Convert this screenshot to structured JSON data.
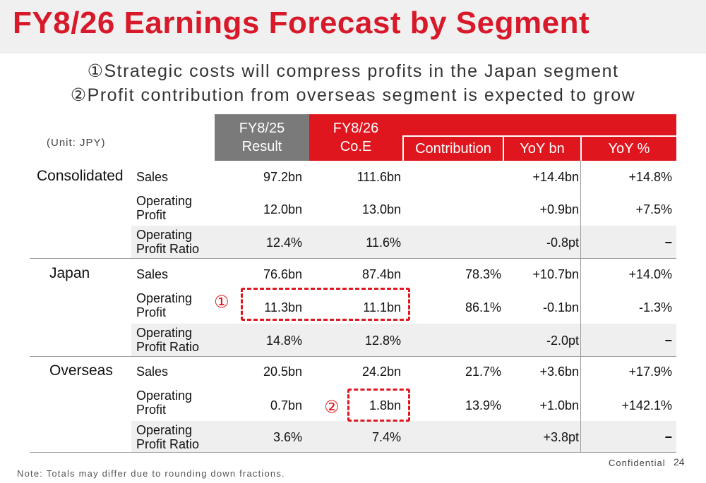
{
  "title": "FY8/26 Earnings Forecast by Segment",
  "subtitle_lines": [
    "①Strategic costs will compress profits in the Japan segment",
    "②Profit contribution from overseas segment is expected to grow"
  ],
  "unit": "(Unit: JPY)",
  "headers": {
    "fy25_line1": "FY8/25",
    "fy25_line2": "Result",
    "fy26_line1": "FY8/26",
    "fy26_line2": "Co.E",
    "contribution": "Contribution",
    "yoy_bn": "YoY bn",
    "yoy_pct": "YoY %"
  },
  "metric_labels": {
    "sales": "Sales",
    "op_line1": "Operating",
    "op_line2": "Profit",
    "opr_line1": "Operating",
    "opr_line2": "Profit Ratio"
  },
  "segments": [
    {
      "name": "Consolidated",
      "rows": [
        {
          "fy25": "97.2bn",
          "fy26": "111.6bn",
          "contribution": "",
          "yoy_bn": "+14.4bn",
          "yoy_pct": "+14.8%"
        },
        {
          "fy25": "12.0bn",
          "fy26": "13.0bn",
          "contribution": "",
          "yoy_bn": "+0.9bn",
          "yoy_pct": "+7.5%"
        },
        {
          "fy25": "12.4%",
          "fy26": "11.6%",
          "contribution": "",
          "yoy_bn": "-0.8pt",
          "yoy_pct": "−"
        }
      ]
    },
    {
      "name": "Japan",
      "rows": [
        {
          "fy25": "76.6bn",
          "fy26": "87.4bn",
          "contribution": "78.3%",
          "yoy_bn": "+10.7bn",
          "yoy_pct": "+14.0%"
        },
        {
          "fy25": "11.3bn",
          "fy26": "11.1bn",
          "contribution": "86.1%",
          "yoy_bn": "-0.1bn",
          "yoy_pct": "-1.3%"
        },
        {
          "fy25": "14.8%",
          "fy26": "12.8%",
          "contribution": "",
          "yoy_bn": "-2.0pt",
          "yoy_pct": "−"
        }
      ]
    },
    {
      "name": "Overseas",
      "rows": [
        {
          "fy25": "20.5bn",
          "fy26": "24.2bn",
          "contribution": "21.7%",
          "yoy_bn": "+3.6bn",
          "yoy_pct": "+17.9%"
        },
        {
          "fy25": "0.7bn",
          "fy26": "1.8bn",
          "contribution": "13.9%",
          "yoy_bn": "+1.0bn",
          "yoy_pct": "+142.1%"
        },
        {
          "fy25": "3.6%",
          "fy26": "7.4%",
          "contribution": "",
          "yoy_bn": "+3.8pt",
          "yoy_pct": "−"
        }
      ]
    }
  ],
  "markers": {
    "one": "①",
    "two": "②"
  },
  "note": "Note: Totals may differ due to rounding down fractions.",
  "confidential": "Confidential",
  "page_number": "24",
  "colors": {
    "accent": "#e0161f",
    "title": "#d7192a",
    "fy25_header": "#7a7a7a",
    "shade": "#efefef"
  }
}
